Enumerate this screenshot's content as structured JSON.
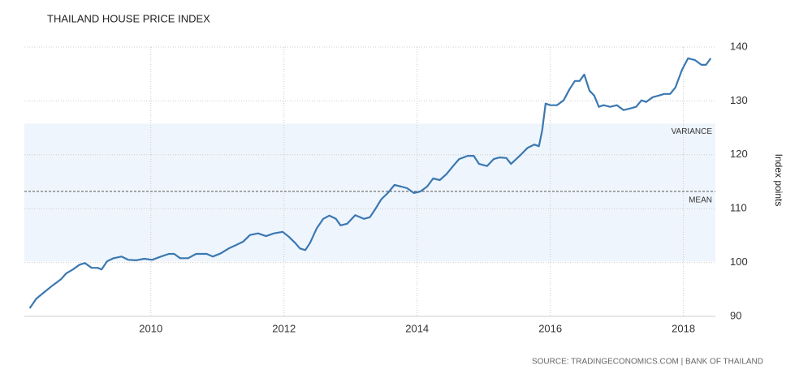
{
  "chart_data": {
    "type": "line",
    "title": "THAILAND HOUSE PRICE INDEX",
    "y_label": "Index points",
    "source": "SOURCE: TRADINGECONOMICS.COM | BANK OF THAILAND",
    "mean": 113.2,
    "mean_label": "MEAN",
    "variance_band": [
      100.2,
      125.8
    ],
    "variance_label": "VARIANCE",
    "xlim": [
      2008.1,
      2018.48
    ],
    "xticks": [
      2010,
      2012,
      2014,
      2016,
      2018
    ],
    "ylim": [
      90,
      140
    ],
    "yticks": [
      90,
      100,
      110,
      120,
      130,
      140
    ],
    "grid": true,
    "y_axis_side": "right",
    "series": [
      {
        "name": "Thailand House Price Index",
        "color": "#3b78b1",
        "x": [
          2008.18,
          2008.28,
          2008.4,
          2008.52,
          2008.65,
          2008.73,
          2008.83,
          2008.93,
          2009.01,
          2009.11,
          2009.2,
          2009.26,
          2009.34,
          2009.44,
          2009.56,
          2009.66,
          2009.78,
          2009.9,
          2010.02,
          2010.15,
          2010.27,
          2010.35,
          2010.44,
          2010.56,
          2010.68,
          2010.84,
          2010.93,
          2011.05,
          2011.17,
          2011.29,
          2011.39,
          2011.49,
          2011.61,
          2011.73,
          2011.85,
          2011.98,
          2012.07,
          2012.17,
          2012.24,
          2012.32,
          2012.39,
          2012.49,
          2012.59,
          2012.68,
          2012.78,
          2012.85,
          2012.95,
          2013.07,
          2013.2,
          2013.29,
          2013.37,
          2013.46,
          2013.56,
          2013.66,
          2013.76,
          2013.85,
          2013.95,
          2014.05,
          2014.15,
          2014.24,
          2014.34,
          2014.44,
          2014.54,
          2014.63,
          2014.76,
          2014.85,
          2014.93,
          2015.05,
          2015.15,
          2015.24,
          2015.34,
          2015.41,
          2015.54,
          2015.66,
          2015.76,
          2015.83,
          2015.88,
          2015.93,
          2016.0,
          2016.1,
          2016.2,
          2016.29,
          2016.37,
          2016.44,
          2016.51,
          2016.59,
          2016.66,
          2016.73,
          2016.8,
          2016.9,
          2017.0,
          2017.1,
          2017.2,
          2017.29,
          2017.37,
          2017.44,
          2017.54,
          2017.63,
          2017.71,
          2017.8,
          2017.88,
          2017.98,
          2018.07,
          2018.17,
          2018.27,
          2018.34,
          2018.41
        ],
        "values": [
          91.5,
          93.3,
          94.5,
          95.7,
          96.9,
          98.0,
          98.7,
          99.6,
          99.9,
          99.0,
          99.0,
          98.7,
          100.2,
          100.8,
          101.1,
          100.5,
          100.4,
          100.7,
          100.5,
          101.1,
          101.6,
          101.6,
          100.8,
          100.8,
          101.6,
          101.6,
          101.1,
          101.7,
          102.6,
          103.3,
          103.9,
          105.1,
          105.4,
          104.9,
          105.4,
          105.7,
          104.8,
          103.6,
          102.6,
          102.3,
          103.6,
          106.3,
          108.1,
          108.7,
          108.1,
          106.9,
          107.2,
          108.8,
          108.1,
          108.4,
          109.9,
          111.7,
          112.9,
          114.4,
          114.1,
          113.8,
          112.9,
          113.2,
          114.1,
          115.6,
          115.3,
          116.4,
          117.9,
          119.2,
          119.8,
          119.8,
          118.3,
          117.9,
          119.2,
          119.5,
          119.4,
          118.3,
          119.8,
          121.3,
          121.9,
          121.6,
          124.6,
          129.5,
          129.2,
          129.2,
          130.1,
          132.2,
          133.7,
          133.7,
          134.9,
          131.9,
          131.0,
          128.9,
          129.2,
          128.9,
          129.2,
          128.3,
          128.6,
          128.9,
          130.1,
          129.8,
          130.7,
          131.0,
          131.3,
          131.3,
          132.5,
          135.8,
          137.9,
          137.6,
          136.7,
          136.7,
          137.9
        ]
      }
    ]
  }
}
